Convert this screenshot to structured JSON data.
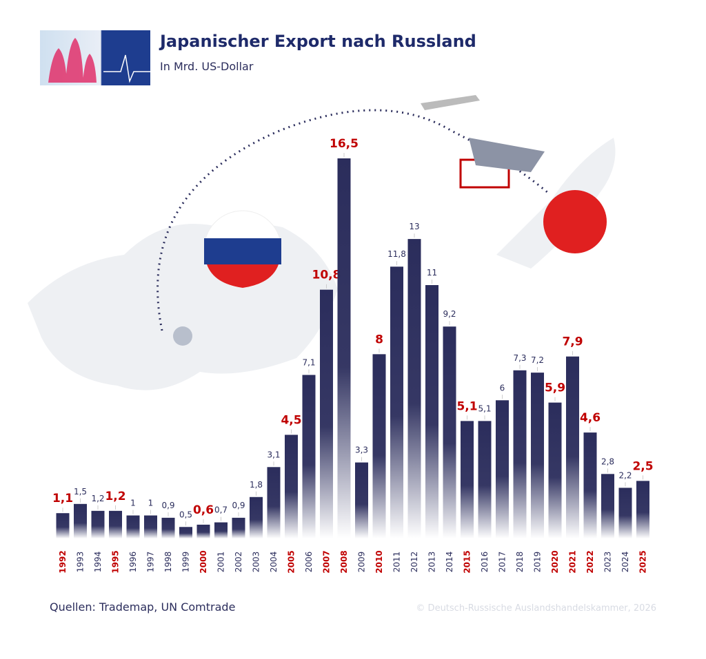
{
  "chart_data": {
    "type": "bar",
    "title": "Japanischer Export nach Russland",
    "subtitle": "In Mrd. US-Dollar",
    "source": "Quellen: Trademap, UN Comtrade",
    "copyright": "© Deutsch-Russische Auslandshandelskammer, 2026",
    "color": "#2b2d5c",
    "categories": [
      "1992",
      "1993",
      "1994",
      "1995",
      "1996",
      "1997",
      "1998",
      "1999",
      "2000",
      "2001",
      "2002",
      "2003",
      "2004",
      "2005",
      "2006",
      "2007",
      "2008",
      "2009",
      "2010",
      "2011",
      "2012",
      "2013",
      "2014",
      "2015",
      "2016",
      "2017",
      "2018",
      "2019",
      "2020",
      "2021",
      "2022",
      "2023",
      "2024",
      "2025"
    ],
    "values": [
      1.1,
      1.5,
      1.2,
      1.2,
      1,
      1,
      0.9,
      0.5,
      0.6,
      0.7,
      0.9,
      1.8,
      3.1,
      4.5,
      7.1,
      10.8,
      16.5,
      3.3,
      8,
      11.8,
      13,
      11,
      9.2,
      5.1,
      5.1,
      6,
      7.3,
      7.2,
      5.9,
      7.9,
      4.6,
      2.8,
      2.2,
      2.5
    ],
    "value_labels": [
      "1,1",
      "1,5",
      "1,2",
      "1,2",
      "1",
      "1",
      "0,9",
      "0,5",
      "0,6",
      "0,7",
      "0,9",
      "1,8",
      "3,1",
      "4,5",
      "7,1",
      "10,8",
      "16,5",
      "3,3",
      "8",
      "11,8",
      "13",
      "11",
      "9,2",
      "5,1",
      "5,1",
      "6",
      "7,3",
      "7,2",
      "5,9",
      "7,9",
      "4,6",
      "2,8",
      "2,2",
      "2,5"
    ],
    "label_colors": [
      "#c00000",
      "#2b2d5c",
      "#2b2d5c",
      "#c00000",
      "#2b2d5c",
      "#2b2d5c",
      "#2b2d5c",
      "#2b2d5c",
      "#c00000",
      "#2b2d5c",
      "#2b2d5c",
      "#2b2d5c",
      "#2b2d5c",
      "#c00000",
      "#2b2d5c",
      "#c00000",
      "#c00000",
      "#2b2d5c",
      "#c00000",
      "#2b2d5c",
      "#2b2d5c",
      "#2b2d5c",
      "#2b2d5c",
      "#c00000",
      "#2b2d5c",
      "#2b2d5c",
      "#2b2d5c",
      "#2b2d5c",
      "#c00000",
      "#c00000",
      "#c00000",
      "#2b2d5c",
      "#2b2d5c",
      "#c00000"
    ]
  }
}
